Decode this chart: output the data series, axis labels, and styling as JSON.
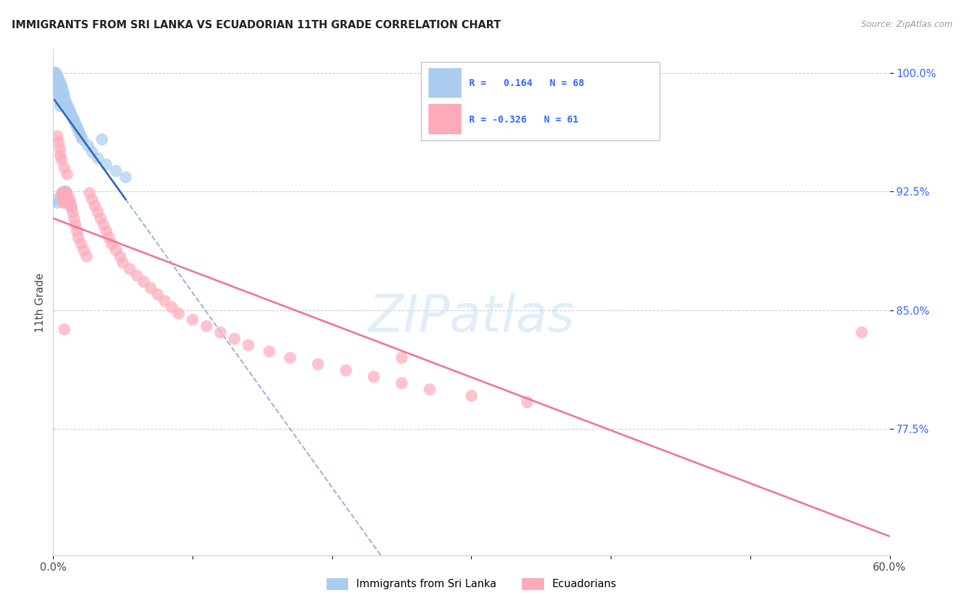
{
  "title": "IMMIGRANTS FROM SRI LANKA VS ECUADORIAN 11TH GRADE CORRELATION CHART",
  "source": "Source: ZipAtlas.com",
  "ylabel": "11th Grade",
  "legend_label1": "Immigrants from Sri Lanka",
  "legend_label2": "Ecuadorians",
  "R1": "0.164",
  "N1": "68",
  "R2": "-0.326",
  "N2": "61",
  "color_blue": "#aaccee",
  "color_blue_line": "#3366bb",
  "color_pink": "#ffaabb",
  "color_pink_line": "#ee7799",
  "color_text": "#333333",
  "color_axis_right": "#3366ff",
  "color_grid": "#cccccc",
  "background_color": "#ffffff",
  "xmin": 0.0,
  "xmax": 0.6,
  "ymin": 0.695,
  "ymax": 1.015,
  "yticks": [
    0.775,
    0.85,
    0.925,
    1.0
  ],
  "ytick_labels": [
    "77.5%",
    "85.0%",
    "92.5%",
    "100.0%"
  ],
  "xticks": [
    0.0,
    0.1,
    0.2,
    0.3,
    0.4,
    0.5,
    0.6
  ],
  "xtick_labels": [
    "0.0%",
    "",
    "",
    "",
    "",
    "",
    "60.0%"
  ],
  "sl_x": [
    0.001,
    0.001,
    0.001,
    0.001,
    0.001,
    0.002,
    0.002,
    0.002,
    0.002,
    0.002,
    0.002,
    0.002,
    0.003,
    0.003,
    0.003,
    0.003,
    0.003,
    0.003,
    0.004,
    0.004,
    0.004,
    0.004,
    0.004,
    0.005,
    0.005,
    0.005,
    0.005,
    0.005,
    0.005,
    0.006,
    0.006,
    0.006,
    0.006,
    0.007,
    0.007,
    0.007,
    0.007,
    0.008,
    0.008,
    0.008,
    0.009,
    0.009,
    0.009,
    0.01,
    0.01,
    0.011,
    0.011,
    0.012,
    0.012,
    0.013,
    0.013,
    0.014,
    0.015,
    0.016,
    0.017,
    0.018,
    0.019,
    0.02,
    0.021,
    0.025,
    0.028,
    0.032,
    0.038,
    0.045,
    0.052,
    0.001,
    0.003,
    0.035
  ],
  "sl_y": [
    1.0,
    0.998,
    0.996,
    0.994,
    0.992,
    1.0,
    0.998,
    0.995,
    0.993,
    0.991,
    0.989,
    0.987,
    0.998,
    0.996,
    0.994,
    0.992,
    0.99,
    0.988,
    0.996,
    0.993,
    0.991,
    0.988,
    0.985,
    0.994,
    0.991,
    0.988,
    0.985,
    0.982,
    0.979,
    0.992,
    0.989,
    0.986,
    0.983,
    0.989,
    0.986,
    0.983,
    0.924,
    0.986,
    0.983,
    0.925,
    0.982,
    0.925,
    0.923,
    0.98,
    0.921,
    0.978,
    0.919,
    0.976,
    0.917,
    0.974,
    0.915,
    0.972,
    0.97,
    0.968,
    0.966,
    0.964,
    0.962,
    0.96,
    0.958,
    0.954,
    0.95,
    0.946,
    0.942,
    0.938,
    0.934,
    0.92,
    0.918,
    0.958
  ],
  "ec_x": [
    0.003,
    0.004,
    0.005,
    0.005,
    0.006,
    0.006,
    0.007,
    0.007,
    0.008,
    0.008,
    0.009,
    0.009,
    0.01,
    0.01,
    0.012,
    0.013,
    0.014,
    0.015,
    0.016,
    0.017,
    0.018,
    0.02,
    0.022,
    0.024,
    0.026,
    0.028,
    0.03,
    0.032,
    0.034,
    0.036,
    0.038,
    0.04,
    0.042,
    0.045,
    0.048,
    0.05,
    0.055,
    0.06,
    0.065,
    0.07,
    0.075,
    0.08,
    0.085,
    0.09,
    0.1,
    0.11,
    0.12,
    0.13,
    0.14,
    0.155,
    0.17,
    0.19,
    0.21,
    0.23,
    0.25,
    0.27,
    0.3,
    0.34,
    0.58,
    0.008,
    0.25
  ],
  "ec_y": [
    0.96,
    0.956,
    0.952,
    0.948,
    0.945,
    0.924,
    0.921,
    0.918,
    0.94,
    0.924,
    0.921,
    0.918,
    0.936,
    0.924,
    0.92,
    0.916,
    0.912,
    0.908,
    0.904,
    0.9,
    0.896,
    0.892,
    0.888,
    0.884,
    0.924,
    0.92,
    0.916,
    0.912,
    0.908,
    0.904,
    0.9,
    0.896,
    0.892,
    0.888,
    0.884,
    0.88,
    0.876,
    0.872,
    0.868,
    0.864,
    0.86,
    0.856,
    0.852,
    0.848,
    0.844,
    0.84,
    0.836,
    0.832,
    0.828,
    0.824,
    0.82,
    0.816,
    0.812,
    0.808,
    0.804,
    0.8,
    0.796,
    0.792,
    0.836,
    0.838,
    0.82
  ]
}
